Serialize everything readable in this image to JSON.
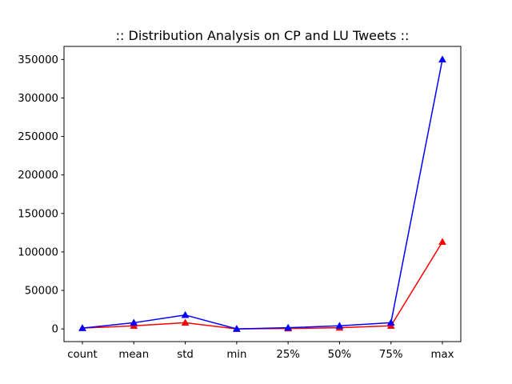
{
  "chart_data": {
    "type": "line",
    "title": ":: Distribution Analysis on CP and LU Tweets ::",
    "xlabel": "",
    "ylabel": "",
    "categories": [
      "count",
      "mean",
      "std",
      "min",
      "25%",
      "50%",
      "75%",
      "max"
    ],
    "ylim": [
      -16500,
      367000
    ],
    "yticks": [
      0,
      50000,
      100000,
      150000,
      200000,
      250000,
      300000,
      350000
    ],
    "grid": false,
    "legend": "none",
    "series": [
      {
        "color": "#ff0000",
        "marker": "triangle",
        "values": [
          1000,
          4000,
          8000,
          0,
          500,
          1500,
          4000,
          113000
        ]
      },
      {
        "color": "#0000ff",
        "marker": "triangle",
        "values": [
          1000,
          8000,
          18000,
          0,
          1500,
          4000,
          8000,
          350000
        ]
      }
    ]
  }
}
